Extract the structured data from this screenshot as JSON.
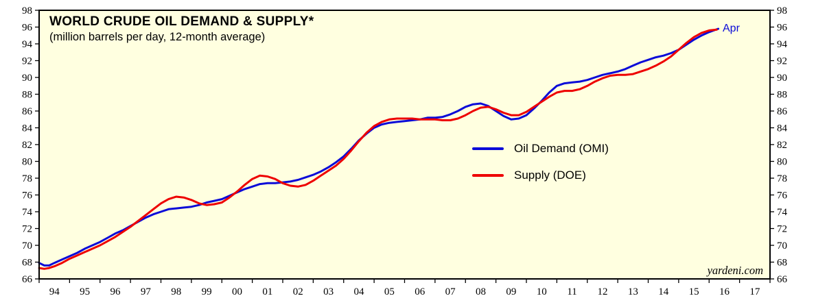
{
  "chart_data": {
    "type": "line",
    "title": "WORLD CRUDE OIL DEMAND & SUPPLY*",
    "subtitle": "(million barrels per day, 12-month average)",
    "plot_bg": "#ffffe0",
    "frame_color": "#000000",
    "ylim": [
      66,
      98
    ],
    "ytick_step": 2,
    "xlim": [
      1994,
      2018
    ],
    "xtick_labels": [
      "94",
      "95",
      "96",
      "97",
      "98",
      "99",
      "00",
      "01",
      "02",
      "03",
      "04",
      "05",
      "06",
      "07",
      "08",
      "09",
      "10",
      "11",
      "12",
      "13",
      "14",
      "15",
      "16",
      "17"
    ],
    "grid": false,
    "legend_position": "inside-right-middle",
    "legend": [
      {
        "name": "Oil Demand (OMI)",
        "color": "#0b0bd8"
      },
      {
        "name": "Supply (DOE)",
        "color": "#ee0000"
      }
    ],
    "annotations": {
      "end_label": {
        "text": "Apr",
        "color": "#0b0bd8"
      },
      "watermark": "yardeni.com"
    },
    "series": [
      {
        "name": "Oil Demand (OMI)",
        "color": "#0b0bd8",
        "x": [
          1994.0,
          1994.17,
          1994.33,
          1994.5,
          1994.75,
          1995.0,
          1995.25,
          1995.5,
          1995.75,
          1996.0,
          1996.25,
          1996.5,
          1996.75,
          1997.0,
          1997.25,
          1997.5,
          1997.75,
          1998.0,
          1998.25,
          1998.5,
          1998.75,
          1999.0,
          1999.25,
          1999.5,
          1999.75,
          2000.0,
          2000.25,
          2000.5,
          2000.75,
          2001.0,
          2001.25,
          2001.5,
          2001.75,
          2002.0,
          2002.25,
          2002.5,
          2002.75,
          2003.0,
          2003.25,
          2003.5,
          2003.75,
          2004.0,
          2004.25,
          2004.5,
          2004.75,
          2005.0,
          2005.25,
          2005.5,
          2005.75,
          2006.0,
          2006.25,
          2006.5,
          2006.75,
          2007.0,
          2007.25,
          2007.5,
          2007.75,
          2008.0,
          2008.25,
          2008.5,
          2008.75,
          2009.0,
          2009.25,
          2009.5,
          2009.75,
          2010.0,
          2010.25,
          2010.5,
          2010.75,
          2011.0,
          2011.25,
          2011.5,
          2011.75,
          2012.0,
          2012.25,
          2012.5,
          2012.75,
          2013.0,
          2013.25,
          2013.5,
          2013.75,
          2014.0,
          2014.25,
          2014.5,
          2014.75,
          2015.0,
          2015.25,
          2015.5,
          2015.75,
          2016.0,
          2016.3
        ],
        "y": [
          67.9,
          67.6,
          67.6,
          67.9,
          68.3,
          68.7,
          69.1,
          69.6,
          70.0,
          70.4,
          70.9,
          71.4,
          71.8,
          72.3,
          72.8,
          73.3,
          73.7,
          74.0,
          74.3,
          74.4,
          74.5,
          74.6,
          74.8,
          75.1,
          75.3,
          75.5,
          75.9,
          76.3,
          76.7,
          77.0,
          77.3,
          77.4,
          77.4,
          77.5,
          77.6,
          77.8,
          78.1,
          78.4,
          78.8,
          79.3,
          79.9,
          80.6,
          81.5,
          82.5,
          83.3,
          84.0,
          84.4,
          84.6,
          84.7,
          84.8,
          84.9,
          85.0,
          85.2,
          85.2,
          85.3,
          85.6,
          86.0,
          86.5,
          86.8,
          86.9,
          86.6,
          86.0,
          85.4,
          85.0,
          85.1,
          85.5,
          86.3,
          87.2,
          88.2,
          89.0,
          89.3,
          89.4,
          89.5,
          89.7,
          90.0,
          90.3,
          90.5,
          90.7,
          91.0,
          91.4,
          91.8,
          92.1,
          92.4,
          92.6,
          92.9,
          93.3,
          93.9,
          94.5,
          95.0,
          95.4,
          95.8
        ]
      },
      {
        "name": "Supply (DOE)",
        "color": "#ee0000",
        "x": [
          1994.0,
          1994.17,
          1994.33,
          1994.5,
          1994.75,
          1995.0,
          1995.25,
          1995.5,
          1995.75,
          1996.0,
          1996.25,
          1996.5,
          1996.75,
          1997.0,
          1997.25,
          1997.5,
          1997.75,
          1998.0,
          1998.25,
          1998.5,
          1998.75,
          1999.0,
          1999.25,
          1999.5,
          1999.75,
          2000.0,
          2000.25,
          2000.5,
          2000.75,
          2001.0,
          2001.25,
          2001.5,
          2001.75,
          2002.0,
          2002.25,
          2002.5,
          2002.75,
          2003.0,
          2003.25,
          2003.5,
          2003.75,
          2004.0,
          2004.25,
          2004.5,
          2004.75,
          2005.0,
          2005.25,
          2005.5,
          2005.75,
          2006.0,
          2006.25,
          2006.5,
          2006.75,
          2007.0,
          2007.25,
          2007.5,
          2007.75,
          2008.0,
          2008.25,
          2008.5,
          2008.75,
          2009.0,
          2009.25,
          2009.5,
          2009.75,
          2010.0,
          2010.25,
          2010.5,
          2010.75,
          2011.0,
          2011.25,
          2011.5,
          2011.75,
          2012.0,
          2012.25,
          2012.5,
          2012.75,
          2013.0,
          2013.25,
          2013.5,
          2013.75,
          2014.0,
          2014.25,
          2014.5,
          2014.75,
          2015.0,
          2015.25,
          2015.5,
          2015.75,
          2016.0,
          2016.25
        ],
        "y": [
          67.3,
          67.2,
          67.3,
          67.5,
          67.9,
          68.4,
          68.8,
          69.2,
          69.6,
          70.0,
          70.5,
          71.0,
          71.6,
          72.2,
          72.9,
          73.6,
          74.3,
          75.0,
          75.5,
          75.8,
          75.7,
          75.4,
          75.0,
          74.8,
          74.9,
          75.1,
          75.7,
          76.4,
          77.2,
          77.9,
          78.3,
          78.2,
          77.9,
          77.4,
          77.1,
          77.0,
          77.2,
          77.7,
          78.3,
          78.9,
          79.5,
          80.3,
          81.3,
          82.4,
          83.4,
          84.2,
          84.7,
          85.0,
          85.1,
          85.1,
          85.1,
          85.0,
          85.0,
          85.0,
          84.9,
          84.9,
          85.1,
          85.5,
          86.0,
          86.4,
          86.5,
          86.2,
          85.8,
          85.5,
          85.5,
          85.9,
          86.5,
          87.1,
          87.7,
          88.2,
          88.4,
          88.4,
          88.6,
          89.0,
          89.5,
          89.9,
          90.2,
          90.3,
          90.3,
          90.4,
          90.7,
          91.0,
          91.4,
          91.9,
          92.5,
          93.3,
          94.1,
          94.8,
          95.3,
          95.6,
          95.7
        ]
      }
    ]
  }
}
